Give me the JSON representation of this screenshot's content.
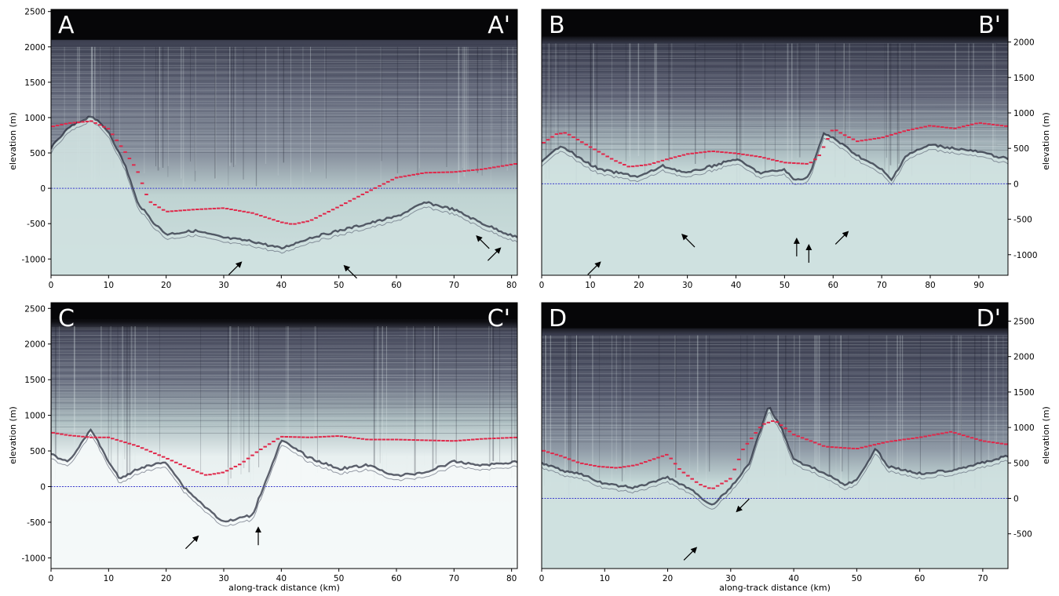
{
  "figure": {
    "xlabel": "along-track distance (km)",
    "ylabel": "elevation (m)"
  },
  "colors": {
    "radar_dark": "#0c0c10",
    "radar_mid": "#5a5e72",
    "radar_light": "#cfe1e0",
    "bed_pick": "#e0284a",
    "sea_level": "#3a3acc"
  },
  "chart_data": [
    {
      "type": "line",
      "panel": "A",
      "labels": {
        "left": "A",
        "right": "A'"
      },
      "xlim": [
        0,
        81
      ],
      "ylim": [
        -1230,
        2530
      ],
      "xticks": [
        0,
        10,
        20,
        30,
        40,
        50,
        60,
        70,
        80
      ],
      "yticks": [
        -1000,
        -500,
        0,
        500,
        1000,
        1500,
        2000,
        2500
      ],
      "y_axis_side": "left",
      "surface_elevation": 2100,
      "sea_level": 0,
      "bed_pick": {
        "x": [
          0,
          3,
          7,
          10,
          13,
          15,
          17,
          20,
          25,
          30,
          35,
          40,
          42,
          45,
          50,
          55,
          60,
          65,
          70,
          75,
          81
        ],
        "y": [
          870,
          920,
          950,
          840,
          500,
          250,
          -180,
          -330,
          -300,
          -280,
          -350,
          -480,
          -510,
          -460,
          -260,
          -50,
          150,
          220,
          230,
          270,
          350
        ]
      },
      "bed_reflector": {
        "x": [
          0,
          3,
          7,
          10,
          13,
          15,
          18,
          20,
          25,
          30,
          35,
          40,
          45,
          50,
          55,
          60,
          65,
          70,
          75,
          81
        ],
        "y": [
          570,
          850,
          1030,
          800,
          300,
          -200,
          -500,
          -650,
          -600,
          -700,
          -750,
          -850,
          -700,
          -600,
          -500,
          -400,
          -200,
          -300,
          -500,
          -700
        ]
      },
      "arrows": [
        {
          "x": 33,
          "y": -1050,
          "dir": "up-right"
        },
        {
          "x": 51,
          "y": -1100,
          "dir": "up-left"
        },
        {
          "x": 74,
          "y": -680,
          "dir": "up-left"
        },
        {
          "x": 78,
          "y": -850,
          "dir": "up-right"
        }
      ]
    },
    {
      "type": "line",
      "panel": "B",
      "labels": {
        "left": "B",
        "right": "B'"
      },
      "xlim": [
        0,
        96
      ],
      "ylim": [
        -1290,
        2460
      ],
      "xticks": [
        0,
        10,
        20,
        30,
        40,
        50,
        60,
        70,
        80,
        90
      ],
      "yticks": [
        -1000,
        -500,
        0,
        500,
        1000,
        1500,
        2000
      ],
      "y_axis_side": "right",
      "surface_elevation": 2080,
      "sea_level": 0,
      "bed_pick": {
        "x": [
          0,
          3,
          5,
          10,
          15,
          18,
          22,
          26,
          30,
          35,
          40,
          45,
          50,
          55,
          57,
          60,
          62,
          65,
          70,
          75,
          80,
          85,
          90,
          96
        ],
        "y": [
          560,
          700,
          720,
          520,
          330,
          240,
          270,
          350,
          420,
          460,
          430,
          380,
          300,
          280,
          380,
          780,
          700,
          600,
          650,
          750,
          820,
          780,
          860,
          810
        ]
      },
      "bed_reflector": {
        "x": [
          0,
          4,
          8,
          12,
          16,
          20,
          25,
          30,
          35,
          40,
          45,
          50,
          52,
          55,
          58,
          60,
          65,
          70,
          72,
          75,
          80,
          90,
          96
        ],
        "y": [
          300,
          550,
          350,
          200,
          150,
          100,
          250,
          150,
          250,
          350,
          150,
          200,
          50,
          100,
          700,
          650,
          400,
          200,
          50,
          400,
          550,
          450,
          350
        ]
      },
      "arrows": [
        {
          "x": 12,
          "y": -1110,
          "dir": "up-right"
        },
        {
          "x": 29,
          "y": -720,
          "dir": "up-left"
        },
        {
          "x": 52.5,
          "y": -780,
          "dir": "up"
        },
        {
          "x": 55,
          "y": -870,
          "dir": "up"
        },
        {
          "x": 63,
          "y": -680,
          "dir": "up-right"
        }
      ]
    },
    {
      "type": "line",
      "panel": "C",
      "labels": {
        "left": "C",
        "right": "C'"
      },
      "xlim": [
        0,
        81
      ],
      "ylim": [
        -1150,
        2580
      ],
      "xticks": [
        0,
        10,
        20,
        30,
        40,
        50,
        60,
        70,
        80
      ],
      "yticks": [
        -1000,
        -500,
        0,
        500,
        1000,
        1500,
        2000,
        2500
      ],
      "y_axis_side": "left",
      "surface_elevation": 2350,
      "sea_level": 0,
      "bed_pick": {
        "x": [
          0,
          3,
          7,
          10,
          15,
          20,
          25,
          27,
          30,
          33,
          36,
          38,
          40,
          45,
          50,
          55,
          60,
          65,
          70,
          75,
          81
        ],
        "y": [
          760,
          720,
          690,
          690,
          570,
          400,
          220,
          160,
          200,
          320,
          500,
          600,
          700,
          690,
          710,
          660,
          660,
          650,
          640,
          670,
          690
        ]
      },
      "bed_reflector": {
        "x": [
          0,
          3,
          7,
          10,
          12,
          15,
          20,
          23,
          25,
          27,
          30,
          35,
          40,
          45,
          50,
          55,
          60,
          65,
          70,
          75,
          81
        ],
        "y": [
          450,
          350,
          800,
          350,
          100,
          250,
          350,
          0,
          -150,
          -300,
          -500,
          -400,
          650,
          400,
          250,
          300,
          150,
          200,
          350,
          300,
          350
        ]
      },
      "arrows": [
        {
          "x": 25.5,
          "y": -700,
          "dir": "up-right"
        },
        {
          "x": 36,
          "y": -580,
          "dir": "up"
        }
      ]
    },
    {
      "type": "line",
      "panel": "D",
      "labels": {
        "left": "D",
        "right": "D'"
      },
      "xlim": [
        0,
        74
      ],
      "ylim": [
        -990,
        2760
      ],
      "xticks": [
        0,
        10,
        20,
        30,
        40,
        50,
        60,
        70
      ],
      "yticks": [
        -500,
        0,
        500,
        1000,
        1500,
        2000,
        2500
      ],
      "y_axis_side": "right",
      "surface_elevation": 2400,
      "sea_level": 0,
      "bed_pick": {
        "x": [
          0,
          3,
          6,
          9,
          12,
          15,
          18,
          20,
          22,
          25,
          27,
          30,
          32,
          35,
          37,
          40,
          43,
          45,
          50,
          55,
          60,
          65,
          70,
          74
        ],
        "y": [
          680,
          600,
          500,
          450,
          430,
          470,
          560,
          620,
          400,
          200,
          130,
          280,
          700,
          1040,
          1100,
          900,
          800,
          730,
          700,
          800,
          860,
          940,
          810,
          760
        ]
      },
      "bed_reflector": {
        "x": [
          0,
          3,
          6,
          10,
          15,
          20,
          24,
          27,
          30,
          33,
          36,
          38,
          40,
          45,
          48,
          50,
          53,
          55,
          60,
          65,
          70,
          74
        ],
        "y": [
          500,
          400,
          350,
          200,
          150,
          300,
          100,
          -100,
          150,
          500,
          1300,
          1000,
          550,
          350,
          200,
          250,
          700,
          450,
          350,
          400,
          500,
          600
        ]
      },
      "arrows": [
        {
          "x": 31,
          "y": -180,
          "dir": "down-left"
        },
        {
          "x": 24.5,
          "y": -700,
          "dir": "up-right"
        }
      ]
    }
  ]
}
